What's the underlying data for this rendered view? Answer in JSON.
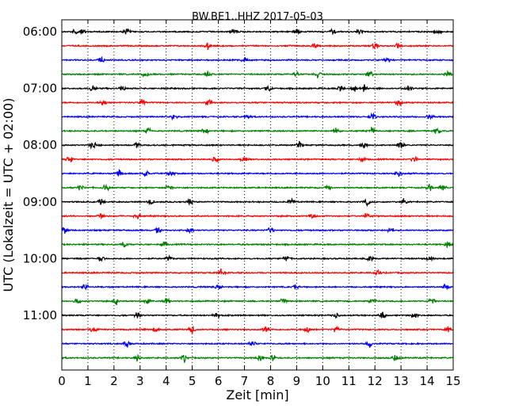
{
  "chart_data": {
    "type": "line",
    "title": "BW.BE1..HHZ 2017-05-03",
    "xlabel": "Zeit  [min]",
    "ylabel": "UTC (Lokalzeit = UTC + 02:00)",
    "xlim": [
      0,
      15
    ],
    "x_ticks": [
      "0",
      "1",
      "2",
      "3",
      "4",
      "5",
      "6",
      "7",
      "8",
      "9",
      "10",
      "11",
      "12",
      "13",
      "14",
      "15"
    ],
    "y_ticks": [
      "06:00",
      "07:00",
      "08:00",
      "09:00",
      "10:00",
      "11:00"
    ],
    "grid": "vertical-dotted",
    "trace_colors": [
      "#000000",
      "#ff0000",
      "#0000ff",
      "#008000"
    ],
    "rows": [
      {
        "events": [
          0.5,
          0.8,
          2.5,
          6.6,
          9.0,
          10.4,
          11.4,
          14.4
        ]
      },
      {
        "events": [
          5.6,
          9.7,
          12.0,
          12.9
        ]
      },
      {
        "events": [
          1.5,
          7.0,
          12.5
        ]
      },
      {
        "events": [
          3.2,
          5.6,
          9.0,
          9.8,
          11.8,
          14.8
        ]
      },
      {
        "events": [
          1.2,
          2.3,
          7.9,
          10.7,
          11.2,
          11.6,
          13.3
        ]
      },
      {
        "events": [
          1.6,
          3.1,
          5.6,
          12.9
        ]
      },
      {
        "events": [
          4.3,
          7.1,
          11.9,
          14.1
        ]
      },
      {
        "events": [
          3.3,
          5.5,
          10.5,
          11.9,
          14.4
        ]
      },
      {
        "events": [
          1.2,
          2.9,
          9.1,
          11.6,
          13.0
        ]
      },
      {
        "events": [
          0.3,
          5.9,
          7.0,
          11.5,
          13.5
        ]
      },
      {
        "events": [
          2.2,
          3.2,
          4.2,
          12.9
        ]
      },
      {
        "events": [
          0.7,
          1.7,
          4.1,
          10.2,
          14.1,
          14.6
        ]
      },
      {
        "events": [
          1.5,
          3.4,
          4.9,
          8.8,
          11.7,
          13.1
        ]
      },
      {
        "events": [
          1.5,
          2.9,
          9.6,
          11.7
        ]
      },
      {
        "events": [
          0.1,
          3.7,
          4.9,
          8.0,
          12.6
        ]
      },
      {
        "events": [
          2.4,
          3.9,
          14.8
        ]
      },
      {
        "events": [
          1.5,
          4.1,
          8.6,
          11.8,
          14.1
        ]
      },
      {
        "events": [
          6.1,
          12.1
        ]
      },
      {
        "events": [
          0.9,
          6.0,
          9.0,
          14.7
        ]
      },
      {
        "events": [
          0.6,
          2.1,
          3.3,
          4.0,
          8.5,
          11.9,
          14.2
        ]
      },
      {
        "events": [
          2.9,
          5.9,
          10.5,
          12.3,
          13.5
        ]
      },
      {
        "events": [
          1.2,
          3.6,
          5.0,
          7.8,
          9.4,
          10.5,
          14.8
        ]
      },
      {
        "events": [
          2.5,
          7.3,
          11.8
        ]
      },
      {
        "events": [
          2.9,
          4.7,
          7.6,
          8.1,
          12.8
        ]
      }
    ]
  }
}
